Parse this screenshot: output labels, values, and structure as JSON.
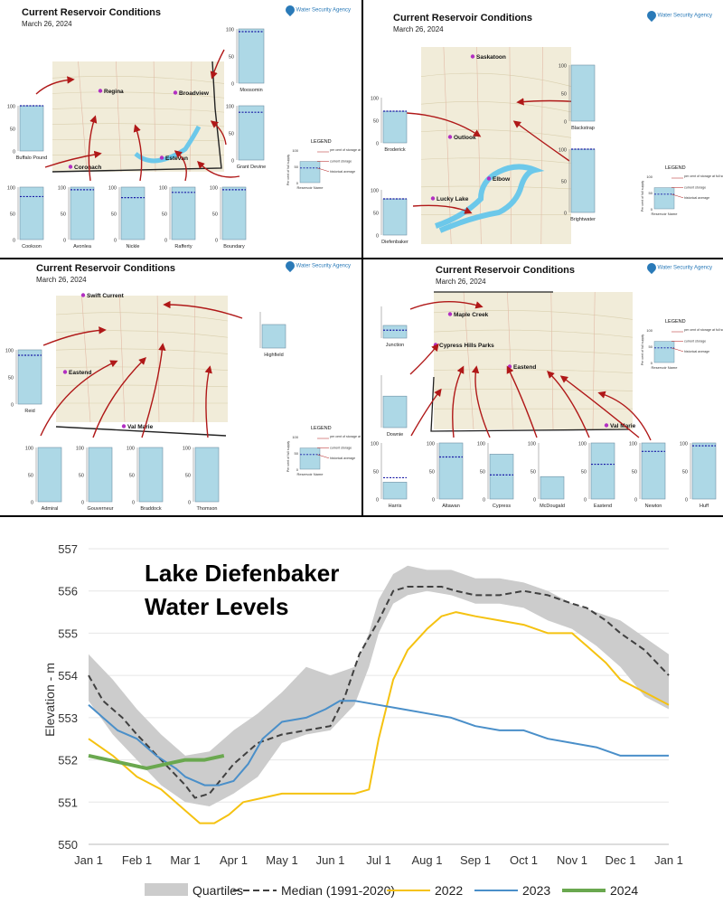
{
  "panels": [
    {
      "title": "Current Reservoir Conditions",
      "date": "March 26, 2024",
      "logo": "Water Security Agency",
      "map_labels": [
        "Regina",
        "Broadview",
        "Estevan",
        "Coronach"
      ],
      "reservoirs": [
        {
          "name": "Moosomin",
          "current": 100,
          "average": 95
        },
        {
          "name": "Buffalo Pound",
          "current": 100,
          "average": 100
        },
        {
          "name": "Grant Devine",
          "current": 100,
          "average": 88
        },
        {
          "name": "Cookson",
          "current": 100,
          "average": 82
        },
        {
          "name": "Avonlea",
          "current": 100,
          "average": 95
        },
        {
          "name": "Nickle",
          "current": 100,
          "average": 80
        },
        {
          "name": "Rafferty",
          "current": 100,
          "average": 90
        },
        {
          "name": "Boundary",
          "current": 100,
          "average": 95
        }
      ]
    },
    {
      "title": "Current Reservoir Conditions",
      "date": "March 26, 2024",
      "logo": "Water Security Agency",
      "map_labels": [
        "Saskatoon",
        "Outlook",
        "Elbow",
        "Lucky Lake"
      ],
      "reservoirs": [
        {
          "name": "Blackstrap",
          "current": 100,
          "average": null
        },
        {
          "name": "Broderick",
          "current": 70,
          "average": 70
        },
        {
          "name": "Brightwater",
          "current": 100,
          "average": 100
        },
        {
          "name": "Diefenbaker",
          "current": 80,
          "average": 80
        }
      ]
    },
    {
      "title": "Current Reservoir Conditions",
      "date": "March 26, 2024",
      "logo": "Water Security Agency",
      "map_labels": [
        "Swift Current",
        "Eastend",
        "Val Marie"
      ],
      "reservoirs": [
        {
          "name": "Highfield",
          "current": 65,
          "average": null
        },
        {
          "name": "Reid",
          "current": 100,
          "average": 90
        },
        {
          "name": "Admiral",
          "current": 100,
          "average": null
        },
        {
          "name": "Gouverneur",
          "current": 100,
          "average": null
        },
        {
          "name": "Braddock",
          "current": 100,
          "average": null
        },
        {
          "name": "Thomson",
          "current": 100,
          "average": null
        }
      ]
    },
    {
      "title": "Current Reservoir Conditions",
      "date": "March 26, 2024",
      "logo": "Water Security Agency",
      "map_labels": [
        "Maple Creek",
        "Cypress Hills Parks",
        "Eastend",
        "Val Marie"
      ],
      "reservoirs": [
        {
          "name": "Junction",
          "current": 40,
          "average": 25
        },
        {
          "name": "Downie",
          "current": 60,
          "average": null
        },
        {
          "name": "Harris",
          "current": 30,
          "average": 38
        },
        {
          "name": "Altawan",
          "current": 100,
          "average": 75
        },
        {
          "name": "Cypress",
          "current": 80,
          "average": 43
        },
        {
          "name": "McDougald",
          "current": 40,
          "average": null
        },
        {
          "name": "Eastend",
          "current": 100,
          "average": 62
        },
        {
          "name": "Newton",
          "current": 100,
          "average": 85
        },
        {
          "name": "Huff",
          "current": 100,
          "average": 95
        }
      ]
    }
  ],
  "legend": {
    "title": "LEGEND",
    "y_label": "Per cent of full supply",
    "x_label": "Reservoir Name",
    "full_supply": "per cent of storage at full supply level",
    "current": "current storage",
    "historical": "historical average",
    "ticks": [
      "100",
      "50",
      "0"
    ]
  },
  "chart_data": {
    "type": "line",
    "title_lines": [
      "Lake Diefenbaker",
      "Water Levels"
    ],
    "ylabel": "Elevation - m",
    "ylim": [
      550,
      557
    ],
    "yticks": [
      550,
      551,
      552,
      553,
      554,
      555,
      556,
      557
    ],
    "xlim": [
      0,
      12
    ],
    "xticks": [
      "Jan 1",
      "Feb 1",
      "Mar 1",
      "Apr 1",
      "May 1",
      "Jun 1",
      "Jul 1",
      "Aug 1",
      "Sep 1",
      "Oct 1",
      "Nov 1",
      "Dec 1",
      "Jan 1"
    ],
    "legend": [
      "Quartiles",
      "Median (1991-2020)",
      "2022",
      "2023",
      "2024"
    ],
    "colors": {
      "quartiles": "#cccccc",
      "median": "#404040",
      "2022": "#f5c211",
      "2023": "#4a8fc9",
      "2024": "#6aa84f"
    },
    "quartiles": {
      "x": [
        0,
        0.5,
        1.0,
        1.5,
        2.0,
        2.5,
        3.0,
        3.5,
        4.0,
        4.5,
        5.0,
        5.5,
        5.8,
        6.0,
        6.3,
        6.6,
        7.0,
        7.5,
        8.0,
        8.5,
        9.0,
        9.5,
        10.0,
        10.5,
        11.0,
        11.5,
        12.0
      ],
      "lower": [
        553.4,
        552.6,
        552.0,
        551.4,
        551.0,
        550.9,
        551.2,
        551.6,
        552.4,
        552.6,
        552.7,
        553.3,
        554.2,
        555.0,
        555.7,
        555.9,
        556.0,
        555.9,
        555.7,
        555.7,
        555.6,
        555.3,
        555.1,
        554.7,
        554.2,
        553.5,
        553.2
      ],
      "upper": [
        554.5,
        553.9,
        553.2,
        552.6,
        552.1,
        552.2,
        552.7,
        553.1,
        553.6,
        554.2,
        554.0,
        554.2,
        555.0,
        555.8,
        556.4,
        556.6,
        556.5,
        556.5,
        556.3,
        556.3,
        556.2,
        556.0,
        555.7,
        555.5,
        555.3,
        554.9,
        554.5
      ]
    },
    "series": [
      {
        "name": "Median (1991-2020)",
        "x": [
          0,
          0.3,
          0.7,
          1.0,
          1.5,
          2.0,
          2.2,
          2.5,
          3.0,
          3.5,
          4.0,
          4.5,
          5.0,
          5.3,
          5.6,
          6.0,
          6.3,
          6.6,
          7.0,
          7.3,
          7.6,
          8.0,
          8.5,
          9.0,
          9.5,
          10.0,
          10.3,
          10.7,
          11.0,
          11.5,
          12.0
        ],
        "y": [
          554.0,
          553.4,
          553.0,
          552.6,
          552.0,
          551.4,
          551.1,
          551.2,
          551.9,
          552.4,
          552.6,
          552.7,
          552.8,
          553.5,
          554.5,
          555.3,
          556.0,
          556.1,
          556.1,
          556.1,
          556.0,
          555.9,
          555.9,
          556.0,
          555.9,
          555.7,
          555.6,
          555.3,
          555.0,
          554.6,
          554.0
        ]
      },
      {
        "name": "2022",
        "x": [
          0,
          0.5,
          1.0,
          1.5,
          2.0,
          2.3,
          2.6,
          2.9,
          3.2,
          3.6,
          4.0,
          4.5,
          5.0,
          5.5,
          5.8,
          6.0,
          6.3,
          6.6,
          7.0,
          7.3,
          7.6,
          8.0,
          8.5,
          9.0,
          9.5,
          10.0,
          10.3,
          10.7,
          11.0,
          11.5,
          12.0
        ],
        "y": [
          552.5,
          552.1,
          551.6,
          551.3,
          550.8,
          550.5,
          550.5,
          550.7,
          551.0,
          551.1,
          551.2,
          551.2,
          551.2,
          551.2,
          551.3,
          552.5,
          553.9,
          554.6,
          555.1,
          555.4,
          555.5,
          555.4,
          555.3,
          555.2,
          555.0,
          555.0,
          554.7,
          554.3,
          553.9,
          553.6,
          553.3
        ]
      },
      {
        "name": "2023",
        "x": [
          0,
          0.3,
          0.6,
          1.0,
          1.4,
          1.8,
          2.0,
          2.4,
          2.7,
          3.0,
          3.3,
          3.6,
          4.0,
          4.5,
          4.9,
          5.2,
          5.5,
          6.0,
          6.5,
          7.0,
          7.5,
          8.0,
          8.5,
          9.0,
          9.5,
          10.0,
          10.5,
          11.0,
          11.3,
          11.6,
          12.0
        ],
        "y": [
          553.3,
          553.0,
          552.7,
          552.5,
          552.1,
          551.8,
          551.6,
          551.4,
          551.4,
          551.5,
          551.9,
          552.5,
          552.9,
          553.0,
          553.2,
          553.4,
          553.4,
          553.3,
          553.2,
          553.1,
          553.0,
          552.8,
          552.7,
          552.7,
          552.5,
          552.4,
          552.3,
          552.1,
          552.1,
          552.1,
          552.1
        ]
      },
      {
        "name": "2024",
        "x": [
          0,
          0.4,
          0.8,
          1.2,
          1.6,
          2.0,
          2.4,
          2.8
        ],
        "y": [
          552.1,
          552.0,
          551.9,
          551.8,
          551.9,
          552.0,
          552.0,
          552.1
        ]
      }
    ]
  }
}
